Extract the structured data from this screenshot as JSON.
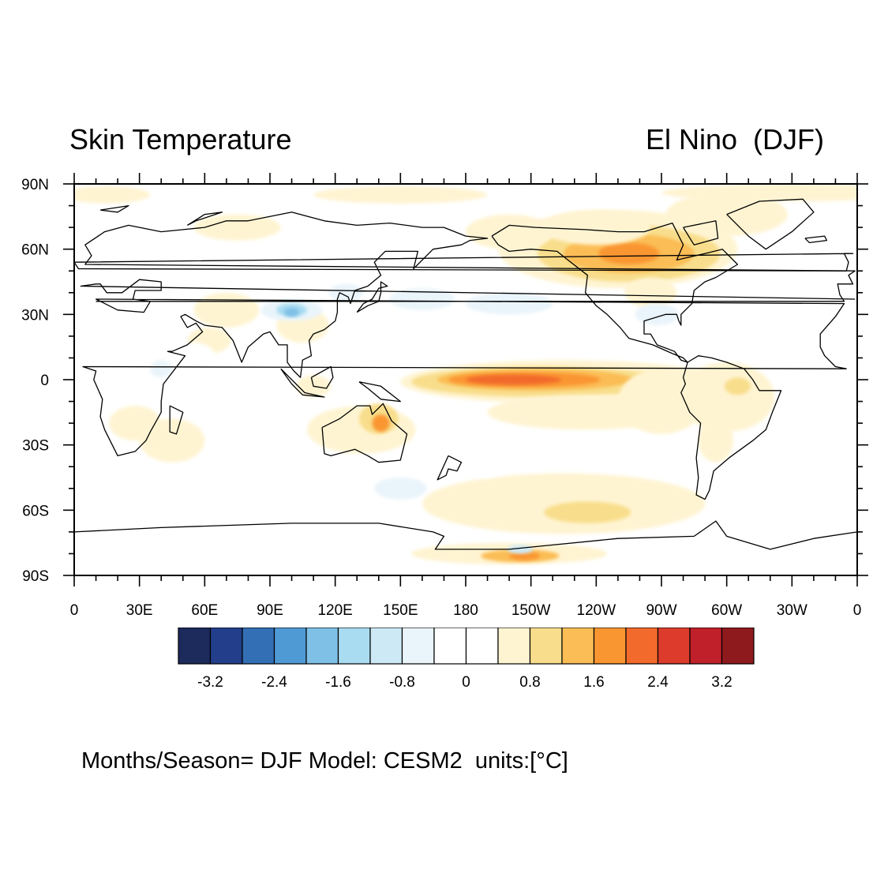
{
  "header": {
    "left_title": "Skin Temperature",
    "right_title": "El Nino  (DJF)"
  },
  "map": {
    "projection": "cylindrical equidistant",
    "center_longitude": "180",
    "lat_labels": [
      "90N",
      "60N",
      "30N",
      "0",
      "30S",
      "60S",
      "90S"
    ],
    "lon_labels": [
      "0",
      "30E",
      "60E",
      "90E",
      "120E",
      "150E",
      "180",
      "150W",
      "120W",
      "90W",
      "60W",
      "30W",
      "0"
    ],
    "features": [
      {
        "name": "central-eastern equatorial Pacific warm anomaly",
        "sign": "positive",
        "peak_value": 2.4
      },
      {
        "name": "northwestern North America warm anomaly",
        "sign": "positive",
        "peak_value": 2.4
      },
      {
        "name": "Tibetan Plateau cold anomaly",
        "sign": "negative",
        "peak_value": -2.0
      },
      {
        "name": "northern Australia warm anomaly",
        "sign": "positive",
        "peak_value": 1.6
      },
      {
        "name": "Amundsen-Bellingshausen Sea warm anomaly",
        "sign": "positive",
        "peak_value": 2.0
      },
      {
        "name": "Southern Ocean warm anomaly",
        "sign": "positive",
        "peak_value": 1.2
      }
    ]
  },
  "colorbar": {
    "labels": [
      "-3.2",
      "-2.4",
      "-1.6",
      "-0.8",
      "0",
      "0.8",
      "1.6",
      "2.4",
      "3.2"
    ],
    "colors": [
      "#1c2a5c",
      "#233f8b",
      "#336fb5",
      "#4f9ad5",
      "#7fc0e6",
      "#a9dcf1",
      "#cde9f6",
      "#e9f4fb",
      "#ffffff",
      "#ffffff",
      "#fff4d2",
      "#f8de8c",
      "#fbbd55",
      "#fa9632",
      "#f26a2c",
      "#dd3c2c",
      "#c0202a",
      "#8e1a1e"
    ]
  },
  "footer": {
    "text": "Months/Season= DJF Model: CESM2  units:[°C]"
  }
}
